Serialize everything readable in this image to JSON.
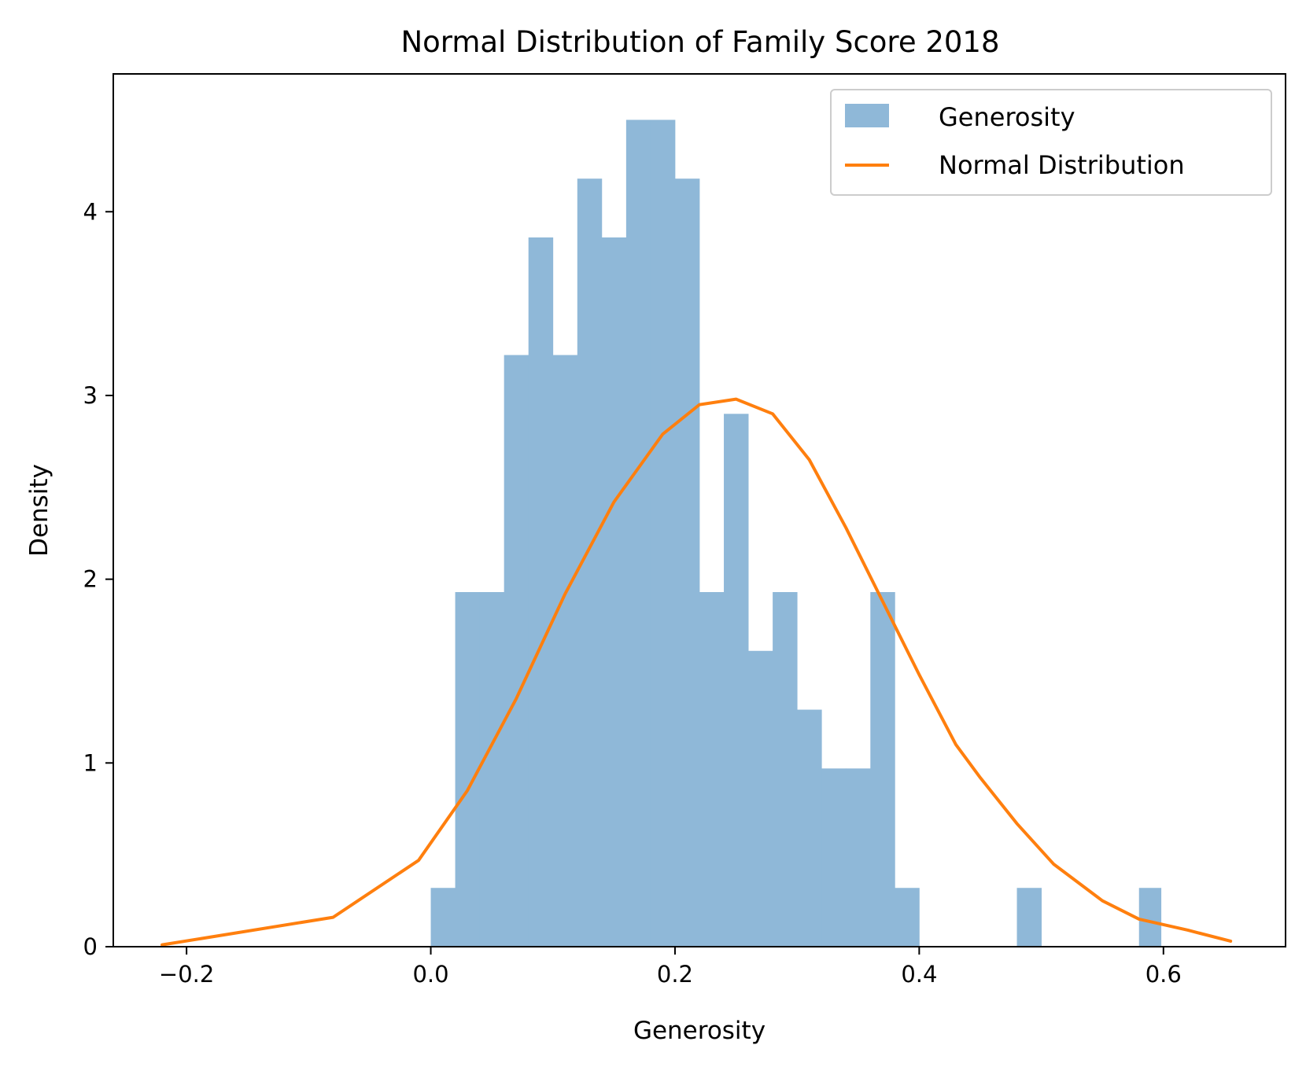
{
  "chart_data": {
    "type": "bar",
    "title": "Normal Distribution of Family Score 2018",
    "xlabel": "Generosity",
    "ylabel": "Density",
    "xlim": [
      -0.26,
      0.7
    ],
    "ylim": [
      0,
      4.75
    ],
    "grid": false,
    "legend_position": "top-right",
    "x_ticks": [
      -0.2,
      0.0,
      0.2,
      0.4,
      0.6
    ],
    "x_tick_labels": [
      "−0.2",
      "0.0",
      "0.2",
      "0.4",
      "0.6"
    ],
    "y_ticks": [
      0,
      1,
      2,
      3,
      4
    ],
    "y_tick_labels": [
      "0",
      "1",
      "2",
      "3",
      "4"
    ],
    "histogram": {
      "name": "Generosity",
      "color": "#8fb8d8",
      "bin_edges": [
        0.0,
        0.02,
        0.04,
        0.06,
        0.08,
        0.1,
        0.12,
        0.14,
        0.16,
        0.18,
        0.2,
        0.22,
        0.24,
        0.26,
        0.28,
        0.3,
        0.32,
        0.34,
        0.36,
        0.38,
        0.4,
        0.42,
        0.44,
        0.46,
        0.48,
        0.5,
        0.52,
        0.54,
        0.56,
        0.58,
        0.598
      ],
      "densities": [
        0.32,
        1.93,
        1.93,
        3.22,
        3.86,
        3.22,
        4.18,
        3.86,
        4.5,
        4.5,
        4.18,
        1.93,
        2.9,
        1.61,
        1.93,
        1.29,
        0.97,
        0.97,
        1.93,
        0.32,
        0,
        0,
        0,
        0,
        0.32,
        0,
        0,
        0,
        0,
        0.32
      ]
    },
    "series": [
      {
        "name": "Normal Distribution",
        "color": "#ff7f0e",
        "x": [
          -0.22,
          -0.08,
          -0.01,
          0.03,
          0.07,
          0.11,
          0.15,
          0.19,
          0.22,
          0.25,
          0.28,
          0.31,
          0.34,
          0.37,
          0.4,
          0.43,
          0.45,
          0.48,
          0.51,
          0.55,
          0.58,
          0.62,
          0.655
        ],
        "y": [
          0.01,
          0.16,
          0.47,
          0.85,
          1.35,
          1.92,
          2.42,
          2.79,
          2.95,
          2.98,
          2.9,
          2.65,
          2.28,
          1.88,
          1.48,
          1.1,
          0.92,
          0.67,
          0.45,
          0.25,
          0.15,
          0.09,
          0.03
        ]
      }
    ]
  }
}
